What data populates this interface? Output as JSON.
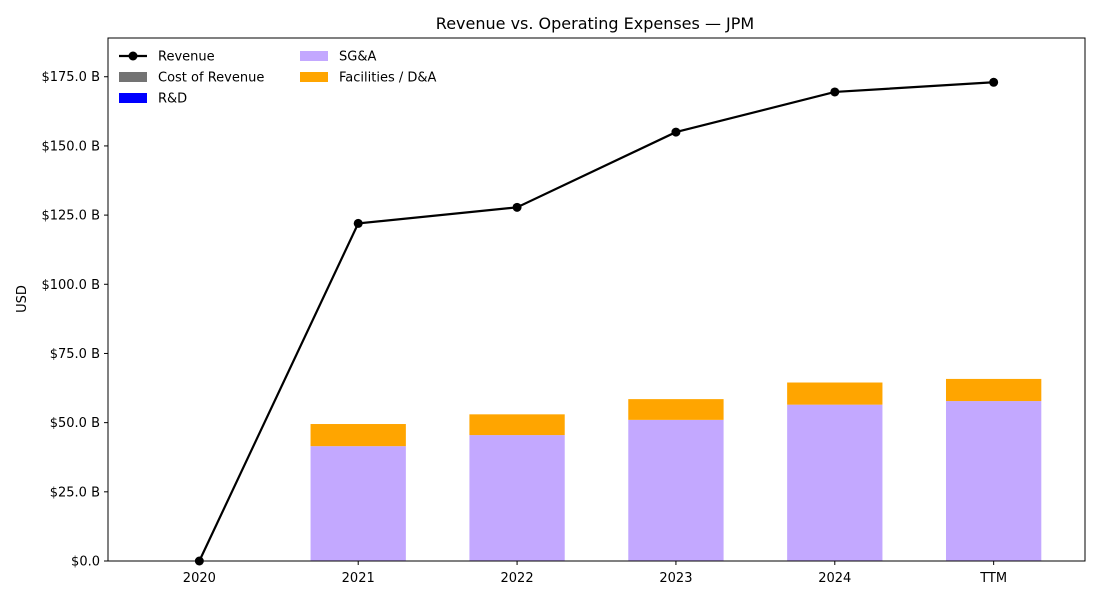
{
  "chart_data": {
    "type": "bar",
    "title": "Revenue vs. Operating Expenses — JPM",
    "ylabel": "USD",
    "xlabel": "",
    "categories": [
      "2020",
      "2021",
      "2022",
      "2023",
      "2024",
      "TTM"
    ],
    "ylim": [
      0,
      189
    ],
    "yticks": [
      {
        "value": 0,
        "label": "$0.0"
      },
      {
        "value": 25,
        "label": "$25.0 B"
      },
      {
        "value": 50,
        "label": "$50.0 B"
      },
      {
        "value": 75,
        "label": "$75.0 B"
      },
      {
        "value": 100,
        "label": "$100.0 B"
      },
      {
        "value": 125,
        "label": "$125.0 B"
      },
      {
        "value": 150,
        "label": "$150.0 B"
      },
      {
        "value": 175,
        "label": "$175.0 B"
      }
    ],
    "stacked_series": [
      {
        "name": "Cost of Revenue",
        "color": "#737373",
        "values": [
          0,
          0,
          0,
          0,
          0,
          0
        ]
      },
      {
        "name": "R&D",
        "color": "#0000ff",
        "values": [
          0,
          0,
          0,
          0,
          0,
          0
        ]
      },
      {
        "name": "SG&A",
        "color": "#c3a8ff",
        "values": [
          0,
          41.5,
          45.5,
          51.0,
          56.5,
          57.8
        ]
      },
      {
        "name": "Facilities / D&A",
        "color": "#ffa500",
        "values": [
          0,
          8.0,
          7.5,
          7.5,
          8.0,
          8.0
        ]
      }
    ],
    "line_series": [
      {
        "name": "Revenue",
        "color": "#000000",
        "values": [
          0,
          122.0,
          127.8,
          155.0,
          169.5,
          173.0
        ]
      }
    ],
    "legend_position": "top-left",
    "grid": false
  }
}
